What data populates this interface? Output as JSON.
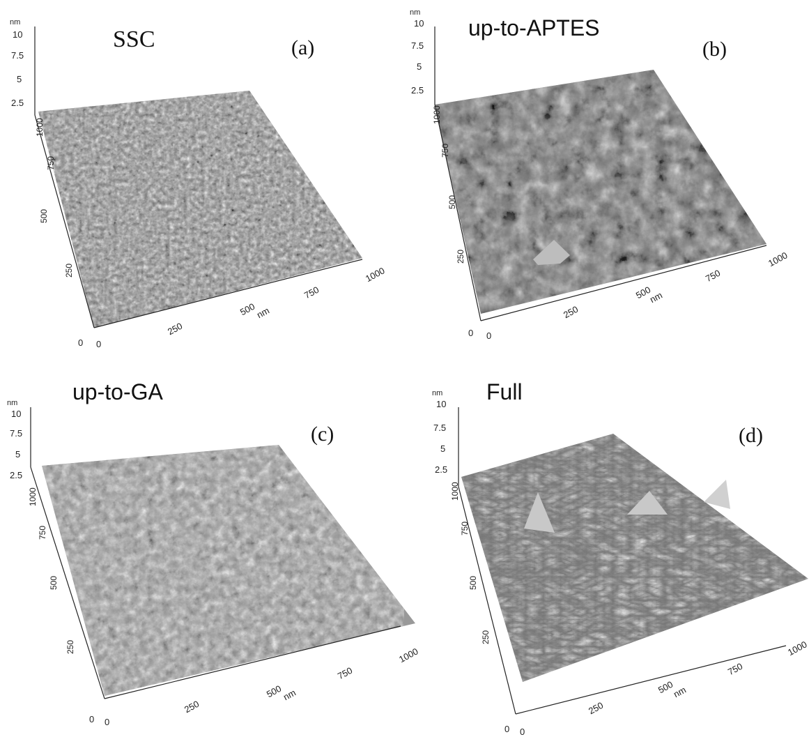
{
  "panels": [
    {
      "title": "SSC",
      "letter": "(a)",
      "z_unit": "nm",
      "z_ticks": [
        "10",
        "7.5",
        "5",
        "2.5"
      ],
      "y_ticks": [
        "1000",
        "750",
        "500",
        "250",
        "0"
      ],
      "x_ticks": [
        "0",
        "250",
        "500",
        "750",
        "1000"
      ],
      "x_unit": "nm",
      "texture": "fine-grain"
    },
    {
      "title": "up-to-APTES",
      "letter": "(b)",
      "z_unit": "nm",
      "z_ticks": [
        "10",
        "7.5",
        "5",
        "2.5"
      ],
      "y_ticks": [
        "1000",
        "750",
        "500",
        "250",
        "0"
      ],
      "x_ticks": [
        "0",
        "250",
        "500",
        "750",
        "1000"
      ],
      "x_unit": "nm",
      "texture": "cloudy"
    },
    {
      "title": "up-to-GA",
      "letter": "(c)",
      "z_unit": "nm",
      "z_ticks": [
        "10",
        "7.5",
        "5",
        "2.5"
      ],
      "y_ticks": [
        "1000",
        "750",
        "500",
        "250",
        "0"
      ],
      "x_ticks": [
        "0",
        "250",
        "500",
        "750",
        "1000"
      ],
      "x_unit": "nm",
      "texture": "mottled"
    },
    {
      "title": "Full",
      "letter": "(d)",
      "z_unit": "nm",
      "z_ticks": [
        "10",
        "7.5",
        "5",
        "2.5"
      ],
      "y_ticks": [
        "1000",
        "750",
        "500",
        "250",
        "0"
      ],
      "x_ticks": [
        "0",
        "250",
        "500",
        "750",
        "1000"
      ],
      "x_unit": "nm",
      "texture": "spiky"
    }
  ]
}
